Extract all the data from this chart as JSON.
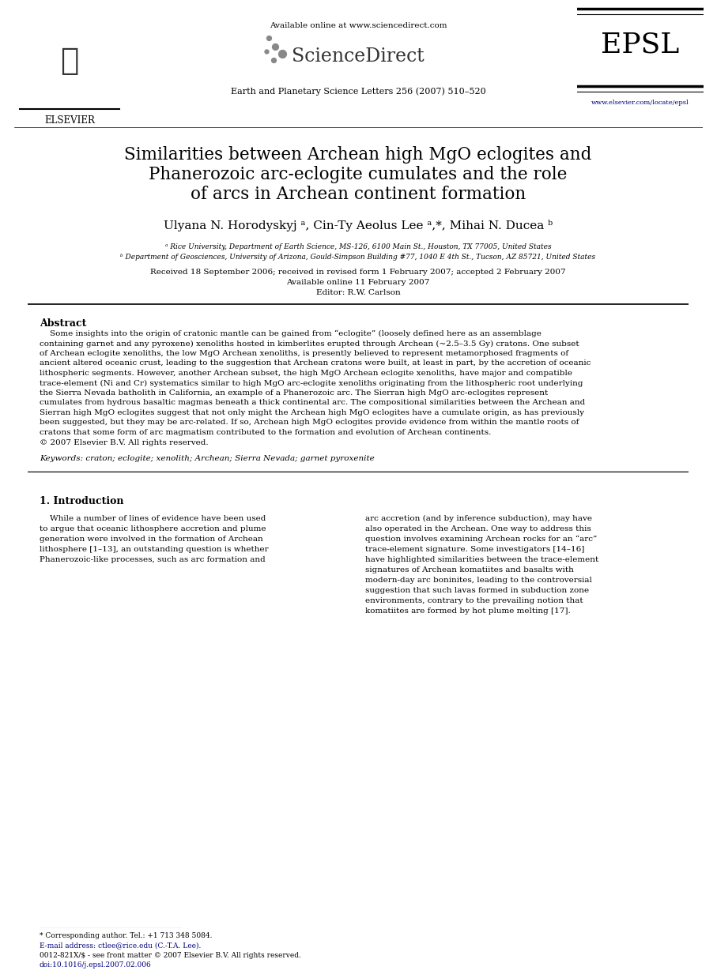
{
  "background_color": "#ffffff",
  "header": {
    "available_online": "Available online at www.sciencedirect.com",
    "sciencedirect": "ScienceDirect",
    "journal_abbr": "EPSL",
    "journal_full": "Earth and Planetary Science Letters 256 (2007) 510–520",
    "url": "www.elsevier.com/locate/epsl",
    "elsevier": "ELSEVIER"
  },
  "title_line1": "Similarities between Archean high MgO eclogites and",
  "title_line2": "Phanerozoic arc-eclogite cumulates and the role",
  "title_line3": "of arcs in Archean continent formation",
  "authors": "Ulyana N. Horodyskyj ᵃ, Cin-Ty Aeolus Lee ᵃ,*, Mihai N. Ducea ᵇ",
  "affil_a": "ᵃ Rice University, Department of Earth Science, MS-126, 6100 Main St., Houston, TX 77005, United States",
  "affil_b": "ᵇ Department of Geosciences, University of Arizona, Gould-Simpson Building #77, 1040 E 4th St., Tucson, AZ 85721, United States",
  "received": "Received 18 September 2006; received in revised form 1 February 2007; accepted 2 February 2007",
  "available": "Available online 11 February 2007",
  "editor": "Editor: R.W. Carlson",
  "abstract_title": "Abstract",
  "abstract_lines": [
    "Some insights into the origin of cratonic mantle can be gained from “eclogite” (loosely defined here as an assemblage containing garnet and any pyroxene) xenoliths hosted in kimberlites erupted through Archean (~2.5–3.5 Gy) cratons. One subset",
    "of Archean eclogite xenoliths, the low MgO Archean xenoliths, is presently believed to represent metamorphosed fragments of ancient altered oceanic crust, leading to the suggestion that Archean cratons were built, at least in part, by the accretion of oceanic",
    "lithospheric segments. However, another Archean subset, the high MgO Archean eclogite xenoliths, have major and compatible trace-element (Ni and Cr) systematics similar to high MgO arc-eclogite xenoliths originating from the lithospheric root underlying",
    "the Sierra Nevada batholith in California, an example of a Phanerozoic arc. The Sierran high MgO arc-eclogites represent cumulates from hydrous basaltic magmas beneath a thick continental arc. The compositional similarities between the Archean and",
    "Sierran high MgO eclogites suggest that not only might the Archean high MgO eclogites have a cumulate origin, as has previously been suggested, but they may be arc-related. If so, Archean high MgO eclogites provide evidence from within the mantle roots of",
    "cratons that some form of arc magmatism contributed to the formation and evolution of Archean continents.",
    "© 2007 Elsevier B.V. All rights reserved."
  ],
  "keywords": "Keywords: craton; eclogite; xenolith; Archean; Sierra Nevada; garnet pyroxenite",
  "sec1_title": "1. Introduction",
  "sec1_left_lines": [
    "While a number of lines of evidence have been used",
    "to argue that oceanic lithosphere accretion and plume",
    "generation were involved in the formation of Archean",
    "lithosphere [1–13], an outstanding question is whether",
    "Phanerozoic-like processes, such as arc formation and"
  ],
  "sec1_right_lines": [
    "arc accretion (and by inference subduction), may have",
    "also operated in the Archean. One way to address this",
    "question involves examining Archean rocks for an “arc”",
    "trace-element signature. Some investigators [14–16]",
    "have highlighted similarities between the trace-element",
    "signatures of Archean komatiites and basalts with",
    "modern-day arc boninites, leading to the controversial",
    "suggestion that such lavas formed in subduction zone",
    "environments, contrary to the prevailing notion that",
    "komatiites are formed by hot plume melting [17]."
  ],
  "footnote1": "* Corresponding author. Tel.: +1 713 348 5084.",
  "footnote2": "E-mail address: ctlee@rice.edu (C.-T.A. Lee).",
  "footer1": "0012-821X/$ - see front matter © 2007 Elsevier B.V. All rights reserved.",
  "footer2": "doi:10.1016/j.epsl.2007.02.006"
}
